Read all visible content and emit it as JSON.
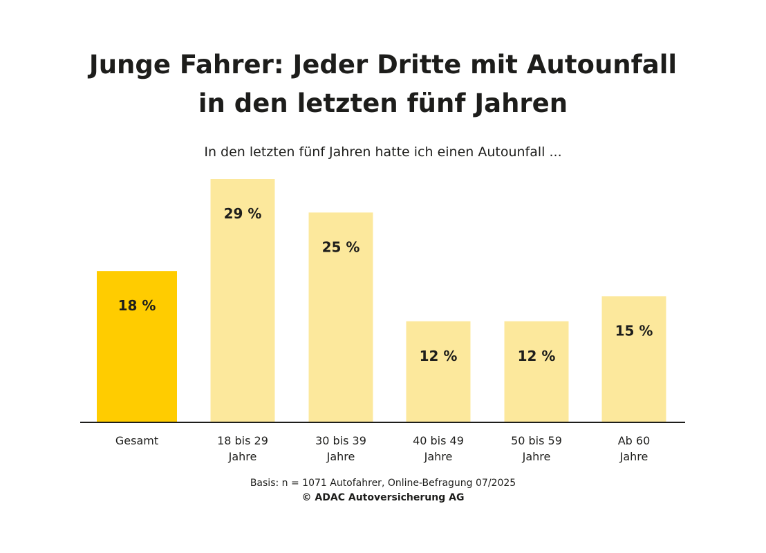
{
  "title_line1": "Junge Fahrer: Jeder Dritte mit Autounfall",
  "title_line2": "in den letzten fünf Jahren",
  "subtitle": "In den letzten fünf Jahren hatte ich einen Autounfall ...",
  "footer": {
    "basis": "Basis: n = 1071 Autofahrer, Online-Befragung 07/2025",
    "copyright": "© ADAC Autoversicherung AG"
  },
  "colors": {
    "highlight": "#FFCC00",
    "bar": "#FCE89C",
    "axis": "#1d1d1b",
    "text": "#1d1d1b"
  },
  "chart_data": {
    "type": "bar",
    "categories": [
      [
        "Gesamt"
      ],
      [
        "18 bis 29",
        "Jahre"
      ],
      [
        "30 bis 39",
        "Jahre"
      ],
      [
        "40 bis 49",
        "Jahre"
      ],
      [
        "50 bis 59",
        "Jahre"
      ],
      [
        "Ab 60",
        "Jahre"
      ]
    ],
    "values": [
      18,
      29,
      25,
      12,
      12,
      15
    ],
    "value_labels": [
      "18 %",
      "29 %",
      "25 %",
      "12 %",
      "12 %",
      "15 %"
    ],
    "highlight_index": 0,
    "unit": "%",
    "ylim": [
      0,
      29
    ],
    "grid": false,
    "legend": "none",
    "yaxis_visible": false
  }
}
